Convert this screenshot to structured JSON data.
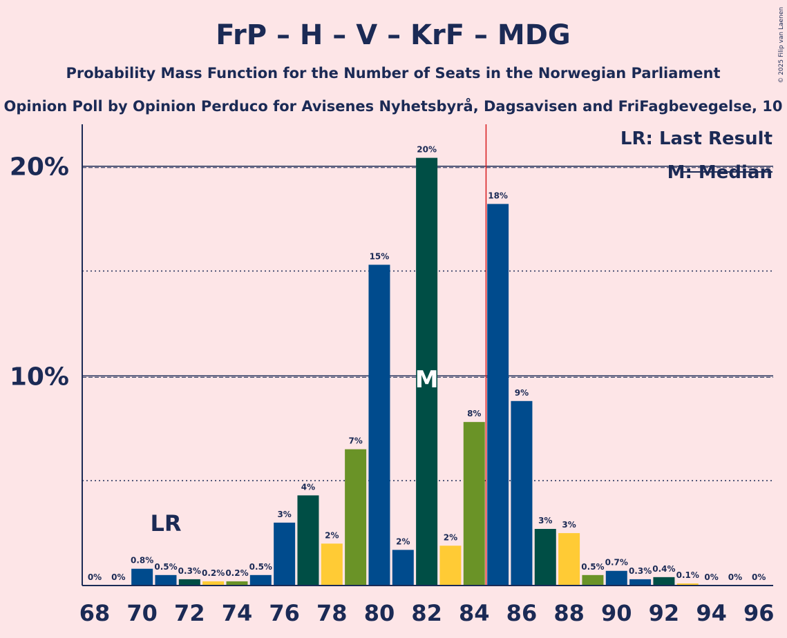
{
  "chart_data": {
    "type": "bar",
    "title": "FrP – H – V – KrF – MDG",
    "subtitle": "Probability Mass Function for the Number of Seats in the Norwegian Parliament",
    "subtitle2": "Opinion Poll by Opinion Perduco for Avisenes Nyhetsbyrå, Dagsavisen and FriFagbevegelse, 10",
    "copyright": "© 2025 Filip van Laenen",
    "xlabel": "",
    "ylabel": "",
    "ylim": [
      0,
      22
    ],
    "x": [
      68,
      69,
      70,
      71,
      72,
      73,
      74,
      75,
      76,
      77,
      78,
      79,
      80,
      81,
      82,
      83,
      84,
      85,
      86,
      87,
      88,
      89,
      90,
      91,
      92,
      93,
      94,
      95,
      96
    ],
    "values": [
      0,
      0,
      0.8,
      0.5,
      0.3,
      0.2,
      0.2,
      0.5,
      3,
      4.3,
      2,
      6.5,
      15.3,
      1.7,
      20.4,
      1.9,
      7.8,
      18.2,
      8.8,
      2.7,
      2.5,
      0.5,
      0.7,
      0.3,
      0.4,
      0.1,
      0,
      0,
      0
    ],
    "labels": [
      "0%",
      "0%",
      "0.8%",
      "0.5%",
      "0.3%",
      "0.2%",
      "0.2%",
      "0.5%",
      "3%",
      "4%",
      "2%",
      "7%",
      "15%",
      "2%",
      "20%",
      "2%",
      "8%",
      "18%",
      "9%",
      "3%",
      "3%",
      "0.5%",
      "0.7%",
      "0.3%",
      "0.4%",
      "0.1%",
      "0%",
      "0%",
      "0%"
    ],
    "bar_colors": [
      "#004b8d",
      "#004b8d",
      "#004b8d",
      "#004b8d",
      "#004e45",
      "#ffcb35",
      "#6a9327",
      "#004b8d",
      "#004b8d",
      "#004e45",
      "#ffcb35",
      "#6a9327",
      "#004b8d",
      "#004b8d",
      "#004e45",
      "#ffcb35",
      "#6a9327",
      "#004b8d",
      "#004b8d",
      "#004e45",
      "#ffcb35",
      "#6a9327",
      "#004b8d",
      "#004b8d",
      "#004e45",
      "#ffcb35",
      "#6a9327",
      "#004b8d",
      "#004b8d"
    ],
    "x_tick_labels": [
      "68",
      "70",
      "72",
      "74",
      "76",
      "78",
      "80",
      "82",
      "84",
      "86",
      "88",
      "90",
      "92",
      "94",
      "96"
    ],
    "y_tick_labels": [
      {
        "value": 10,
        "label": "10%"
      },
      {
        "value": 20,
        "label": "20%"
      }
    ],
    "dotted_lines": [
      5,
      15
    ],
    "last_result": {
      "seat": 71,
      "label": "LR"
    },
    "median": {
      "seat": 82,
      "label": "M"
    },
    "majority_line": 84.5,
    "legend": {
      "position": "top-right",
      "lr_text": "LR: Last Result",
      "median_text": "M: Median"
    },
    "colors": {
      "background": "#fde5e7",
      "text": "#1b2a55",
      "majority": "#d7191c",
      "median_text": "#ffffff"
    }
  }
}
